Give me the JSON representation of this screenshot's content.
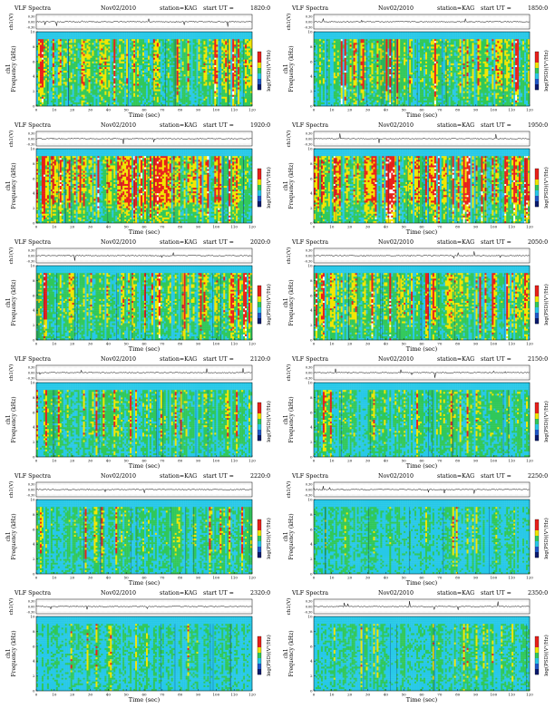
{
  "header_left": "VLF Spectra",
  "date": "Nov02/2010",
  "station": "station=KAG",
  "start_prefix": "start  UT  =",
  "top_ylabel": "ch1(V)",
  "top_ticks": [
    "0.30",
    "0.00",
    "-0.30"
  ],
  "main_ylabel_line1": "ch1",
  "main_ylabel_line2": "Frequency (kHz)",
  "freq_ticks": [
    "0",
    "2",
    "4",
    "6",
    "8",
    "10"
  ],
  "time_ticks": [
    "0",
    "10",
    "20",
    "30",
    "40",
    "50",
    "60",
    "70",
    "80",
    "90",
    "100",
    "110",
    "120"
  ],
  "xlabel": "Time (sec)",
  "cbar_label": "log(PSD)(V²/Hz)",
  "colors": {
    "red": "#e8201a",
    "yellow": "#f2e600",
    "green": "#30c85a",
    "cyan": "#27c8e8",
    "blue": "#1f57c8",
    "navy": "#0a1a6e",
    "white": "#ffffff"
  },
  "chart_data": [
    {
      "type": "heatmap",
      "start_ut": "1820:0",
      "time_range": [
        0,
        120
      ],
      "freq_range": [
        0,
        10
      ],
      "activity": "high"
    },
    {
      "type": "heatmap",
      "start_ut": "1850:0",
      "time_range": [
        0,
        120
      ],
      "freq_range": [
        0,
        10
      ],
      "activity": "high"
    },
    {
      "type": "heatmap",
      "start_ut": "1920:0",
      "time_range": [
        0,
        120
      ],
      "freq_range": [
        0,
        10
      ],
      "activity": "very-high"
    },
    {
      "type": "heatmap",
      "start_ut": "1950:0",
      "time_range": [
        0,
        120
      ],
      "freq_range": [
        0,
        10
      ],
      "activity": "very-high"
    },
    {
      "type": "heatmap",
      "start_ut": "2020:0",
      "time_range": [
        0,
        120
      ],
      "freq_range": [
        0,
        10
      ],
      "activity": "high"
    },
    {
      "type": "heatmap",
      "start_ut": "2050:0",
      "time_range": [
        0,
        120
      ],
      "freq_range": [
        0,
        10
      ],
      "activity": "high"
    },
    {
      "type": "heatmap",
      "start_ut": "2120:0",
      "time_range": [
        0,
        120
      ],
      "freq_range": [
        0,
        10
      ],
      "activity": "medium"
    },
    {
      "type": "heatmap",
      "start_ut": "2150:0",
      "time_range": [
        0,
        120
      ],
      "freq_range": [
        0,
        10
      ],
      "activity": "medium"
    },
    {
      "type": "heatmap",
      "start_ut": "2220:0",
      "time_range": [
        0,
        120
      ],
      "freq_range": [
        0,
        10
      ],
      "activity": "medium"
    },
    {
      "type": "heatmap",
      "start_ut": "2250:0",
      "time_range": [
        0,
        120
      ],
      "freq_range": [
        0,
        10
      ],
      "activity": "low"
    },
    {
      "type": "heatmap",
      "start_ut": "2320:0",
      "time_range": [
        0,
        120
      ],
      "freq_range": [
        0,
        10
      ],
      "activity": "low"
    },
    {
      "type": "heatmap",
      "start_ut": "2350:0",
      "time_range": [
        0,
        120
      ],
      "freq_range": [
        0,
        10
      ],
      "activity": "low"
    }
  ]
}
